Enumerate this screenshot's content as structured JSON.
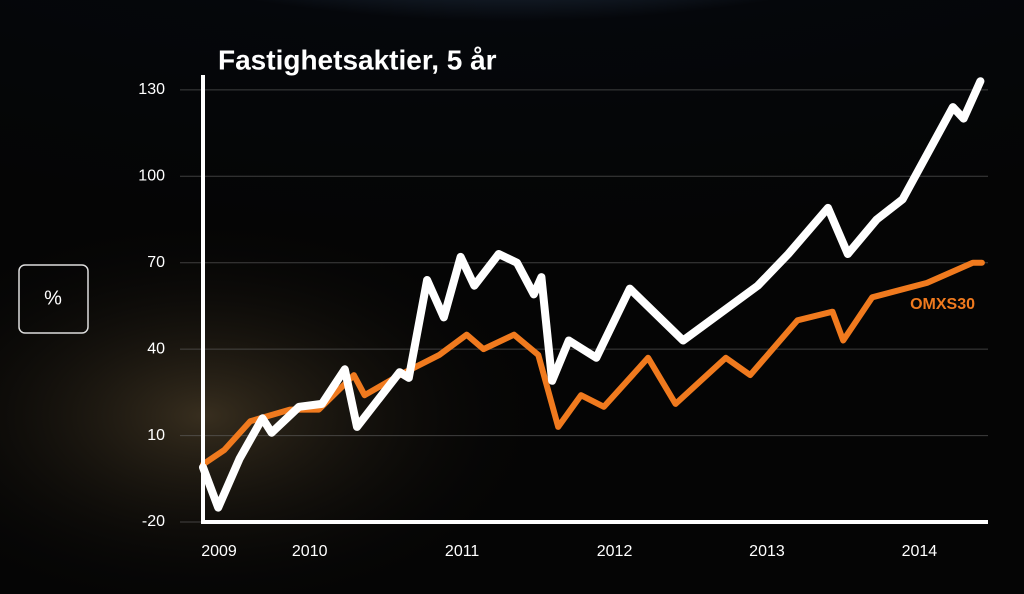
{
  "chart_data": {
    "type": "line",
    "title": "Fastighetsaktier, 5 år",
    "y_label": "%",
    "xlim": [
      2009.3,
      2014.45
    ],
    "xticks": [
      2009,
      2010,
      2011,
      2012,
      2013,
      2014
    ],
    "ylim": [
      -20,
      140
    ],
    "yticks": [
      -20,
      10,
      40,
      70,
      100,
      130
    ],
    "grid": true,
    "series": [
      {
        "color": "#ffffff",
        "x": [
          2009.3,
          2009.4,
          2009.54,
          2009.69,
          2009.75,
          2009.93,
          2010.08,
          2010.23,
          2010.31,
          2010.59,
          2010.65,
          2010.77,
          2010.88,
          2010.99,
          2011.08,
          2011.24,
          2011.36,
          2011.47,
          2011.52,
          2011.59,
          2011.7,
          2011.88,
          2012.1,
          2012.45,
          2012.94,
          2013.14,
          2013.4,
          2013.53,
          2013.72,
          2013.89,
          2014.22,
          2014.29,
          2014.4
        ],
        "values": [
          -1,
          -15,
          2,
          16,
          11,
          20,
          21,
          33,
          13,
          32,
          30,
          64,
          51,
          72,
          62,
          73,
          70,
          59,
          65,
          29,
          43,
          37,
          61,
          43,
          62,
          73,
          89,
          73,
          85,
          92,
          124,
          120,
          133
        ]
      },
      {
        "name": "OMXS30",
        "color": "#f07a1e",
        "x": [
          2009.3,
          2009.44,
          2009.61,
          2009.87,
          2010.06,
          2010.29,
          2010.36,
          2010.59,
          2010.85,
          2011.03,
          2011.14,
          2011.34,
          2011.5,
          2011.63,
          2011.78,
          2011.93,
          2012.22,
          2012.4,
          2012.73,
          2012.89,
          2013.2,
          2013.43,
          2013.5,
          2013.69,
          2014.05,
          2014.35,
          2014.41
        ],
        "values": [
          0,
          5,
          15,
          19,
          19,
          31,
          24,
          31,
          38,
          45,
          40,
          45,
          38,
          13,
          24,
          20,
          37,
          21,
          37,
          31,
          50,
          53,
          43,
          58,
          63,
          70,
          70
        ]
      }
    ]
  }
}
